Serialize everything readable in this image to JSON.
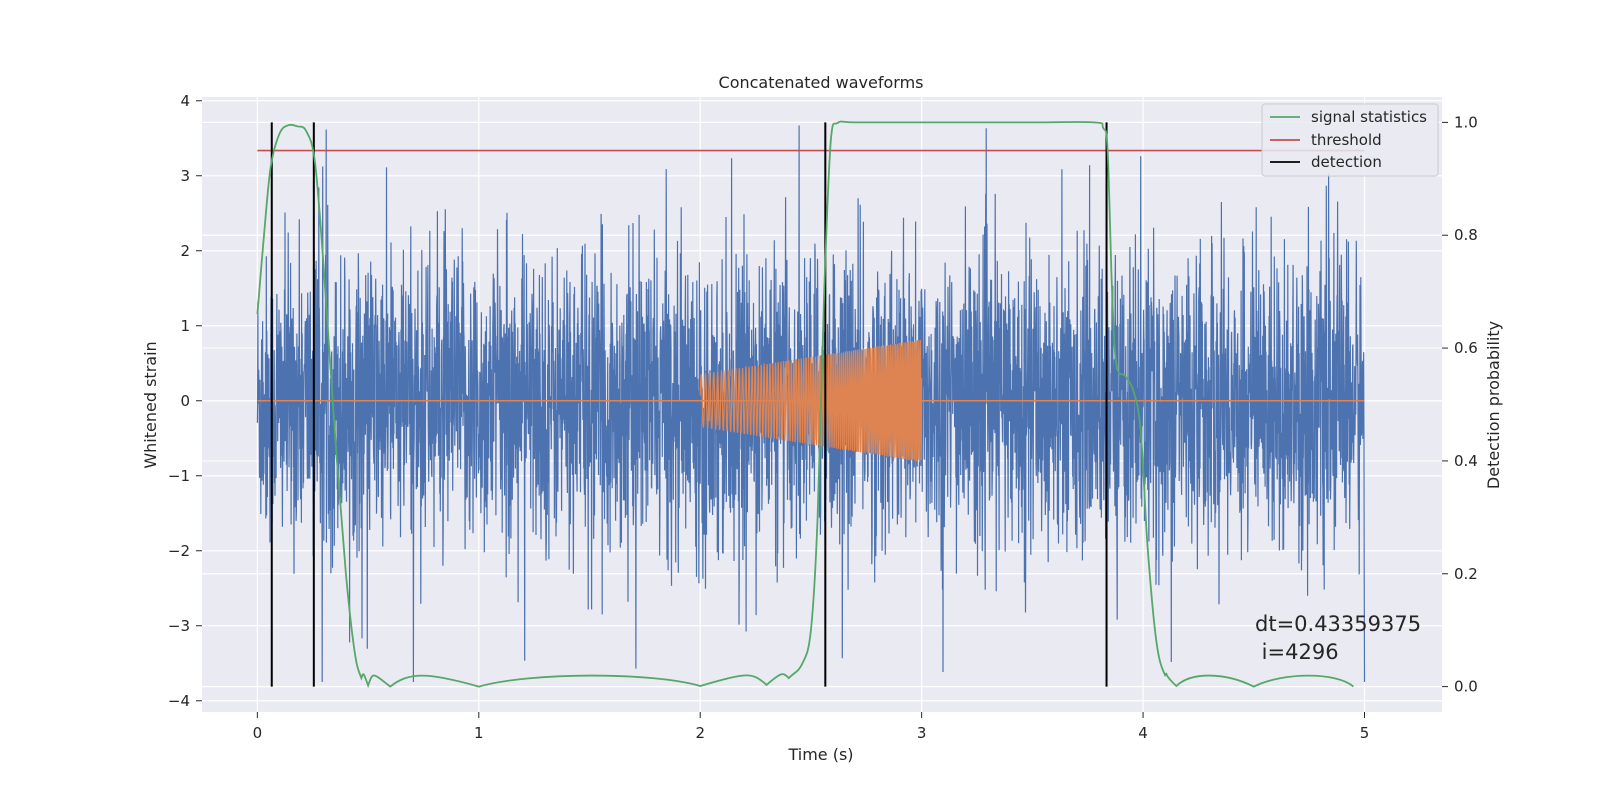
{
  "chart_data": {
    "type": "line",
    "title": "Concatenated waveforms",
    "xlabel": "Time (s)",
    "ylabel": "Whitened strain",
    "y2label": "Detection probability",
    "xlim": [
      -0.25,
      5.35
    ],
    "ylim": [
      -4.15,
      4.05
    ],
    "y2lim": [
      -0.045,
      1.045
    ],
    "xticks": [
      0,
      1,
      2,
      3,
      4,
      5
    ],
    "yticks": [
      -4,
      -3,
      -2,
      -1,
      0,
      1,
      2,
      3,
      4
    ],
    "y2ticks": [
      0.0,
      0.2,
      0.4,
      0.6,
      0.8,
      1.0
    ],
    "xtick_labels": [
      "0",
      "1",
      "2",
      "3",
      "4",
      "5"
    ],
    "ytick_labels": [
      "−4",
      "−3",
      "−2",
      "−1",
      "0",
      "1",
      "2",
      "3",
      "4"
    ],
    "y2tick_labels": [
      "0.0",
      "0.2",
      "0.4",
      "0.6",
      "0.8",
      "1.0"
    ],
    "grid": true,
    "legend_position": "top-right",
    "colors": {
      "strain": "#4c72b0",
      "template": "#dd8452",
      "signal_statistics": "#55a868",
      "threshold": "#c44e52",
      "detection": "#000000",
      "background": "#eaeaf2",
      "grid": "#ffffff"
    },
    "series": [
      {
        "name": "signal statistics",
        "axis": "right",
        "x": [
          0.0,
          0.03,
          0.06,
          0.1,
          0.14,
          0.18,
          0.22,
          0.26,
          0.3,
          0.35,
          0.4,
          0.44,
          0.47,
          0.5,
          0.6,
          1.0,
          2.0,
          2.3,
          2.4,
          2.46,
          2.5,
          2.53,
          2.56,
          2.59,
          2.62,
          2.7,
          3.0,
          3.5,
          3.78,
          3.82,
          3.84,
          3.86,
          3.88,
          3.92,
          3.96,
          3.99,
          4.02,
          4.06,
          4.1,
          4.15,
          4.5,
          4.95
        ],
        "values": [
          0.66,
          0.8,
          0.92,
          0.98,
          0.995,
          0.993,
          0.985,
          0.93,
          0.74,
          0.45,
          0.2,
          0.06,
          0.015,
          0.002,
          0.0,
          0.0,
          0.001,
          0.003,
          0.015,
          0.04,
          0.1,
          0.3,
          0.7,
          0.97,
          0.999,
          1.0,
          1.0,
          1.0,
          1.0,
          0.99,
          0.95,
          0.7,
          0.57,
          0.55,
          0.52,
          0.45,
          0.25,
          0.08,
          0.02,
          0.001,
          0.0,
          0.0
        ]
      },
      {
        "name": "threshold",
        "axis": "right",
        "x": [
          0.0,
          5.0
        ],
        "values": [
          0.95,
          0.95
        ]
      },
      {
        "name": "detection",
        "axis": "right",
        "x": [
          0.065,
          0.255,
          2.565,
          3.835
        ],
        "ylim": [
          0.0,
          1.0
        ]
      },
      {
        "name": "",
        "axis": "left",
        "kind": "noise",
        "x_range": [
          0.0,
          5.0
        ],
        "amplitude_typical": 1.5,
        "max": 3.67,
        "min": -3.75
      },
      {
        "name": "",
        "axis": "left",
        "kind": "chirp",
        "x_range": [
          2.0,
          3.0
        ],
        "amplitude_start": 0.35,
        "amplitude_end": 0.82,
        "baseline": 0.0
      }
    ],
    "legend": [
      "signal statistics",
      "threshold",
      "detection"
    ],
    "annotations": [
      "dt=0.43359375",
      " i=4296"
    ]
  }
}
